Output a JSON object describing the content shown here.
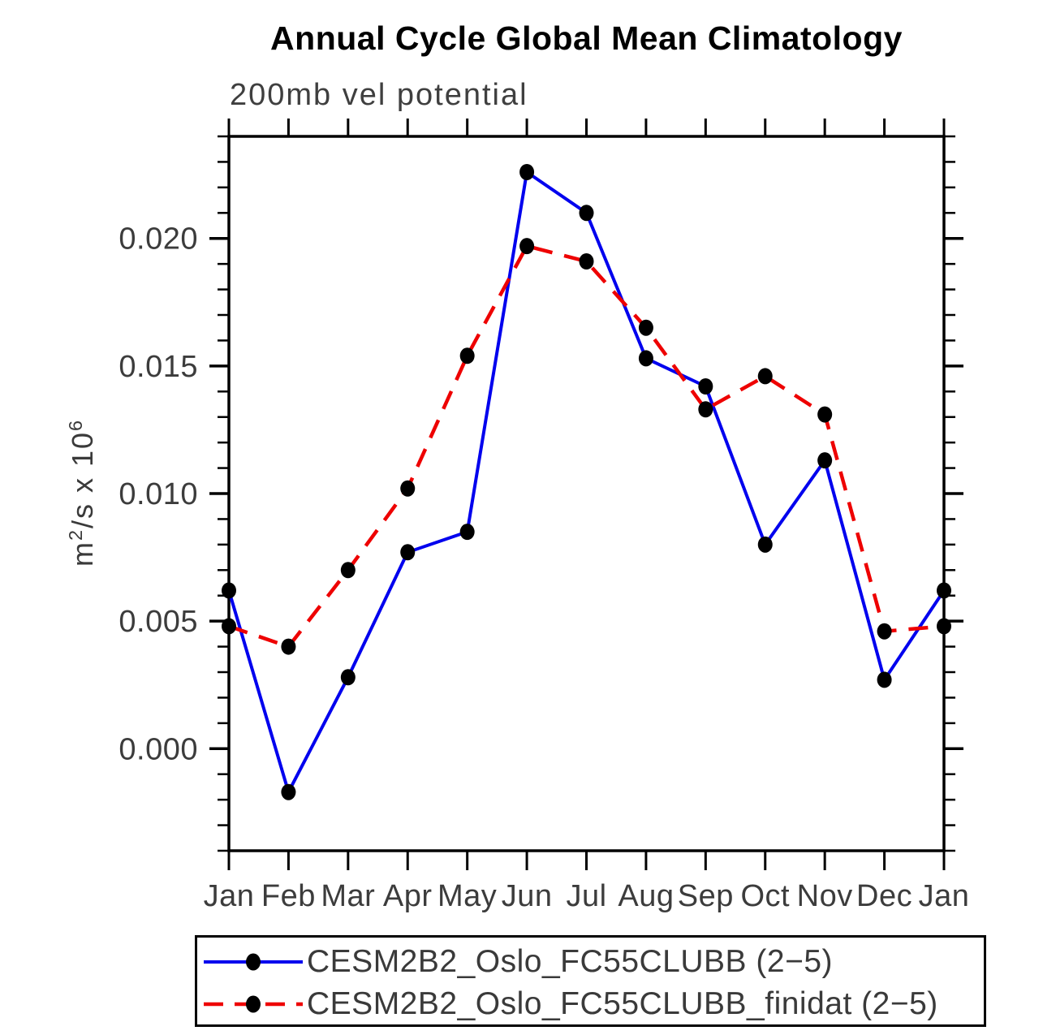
{
  "chart_data": {
    "type": "line",
    "title": "Annual Cycle Global Mean Climatology",
    "subtitle": "200mb vel potential",
    "ylabel_parts": [
      {
        "text": "m"
      },
      {
        "text": "2",
        "sup": true
      },
      {
        "text": "/s x 10"
      },
      {
        "text": "6",
        "sup": true
      }
    ],
    "xlabel": "",
    "categories": [
      "Jan",
      "Feb",
      "Mar",
      "Apr",
      "May",
      "Jun",
      "Jul",
      "Aug",
      "Sep",
      "Oct",
      "Nov",
      "Dec",
      "Jan"
    ],
    "ylim": [
      -0.004,
      0.024
    ],
    "y_major_ticks": [
      {
        "value": 0.0,
        "label": "0.000"
      },
      {
        "value": 0.005,
        "label": "0.005"
      },
      {
        "value": 0.01,
        "label": "0.010"
      },
      {
        "value": 0.015,
        "label": "0.015"
      },
      {
        "value": 0.02,
        "label": "0.020"
      }
    ],
    "y_minor_step": 0.001,
    "grid": false,
    "legend_position": "bottom-box",
    "series": [
      {
        "name": "CESM2B2_Oslo_FC55CLUBB (2−5)",
        "color": "#0000ee",
        "style": "solid",
        "marker": "circle",
        "marker_color": "#000000",
        "values": [
          0.0062,
          -0.0017,
          0.0028,
          0.0077,
          0.0085,
          0.0226,
          0.021,
          0.0153,
          0.0142,
          0.008,
          0.0113,
          0.0027,
          0.0062
        ]
      },
      {
        "name": "CESM2B2_Oslo_FC55CLUBB_finidat (2−5)",
        "color": "#ee0000",
        "style": "dashed",
        "marker": "circle",
        "marker_color": "#000000",
        "values": [
          0.0048,
          0.004,
          0.007,
          0.0102,
          0.0154,
          0.0197,
          0.0191,
          0.0165,
          0.0133,
          0.0146,
          0.0131,
          0.0046,
          0.0048
        ]
      }
    ]
  }
}
